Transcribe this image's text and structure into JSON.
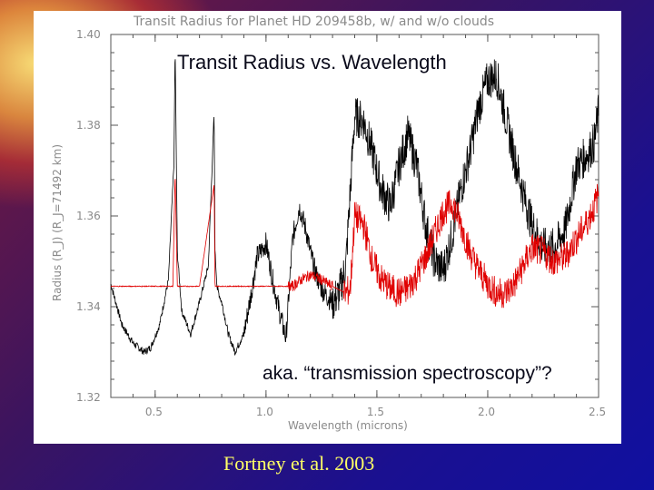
{
  "slide": {
    "overlay_title": "Transit Radius vs. Wavelength",
    "overlay_note": "aka. “transmission spectroscopy”?",
    "citation": "Fortney et al.  2003",
    "background_colors": [
      "#ffe680",
      "#d23c28",
      "#3a1460",
      "#1010a0"
    ]
  },
  "chart_data": {
    "type": "line",
    "title": "Transit Radius for Planet HD 209458b, w/ and w/o clouds",
    "xlabel": "Wavelength (microns)",
    "ylabel": "Radius (R_J) (R_J=71492 km)",
    "xlim": [
      0.3,
      2.5
    ],
    "ylim": [
      1.32,
      1.4
    ],
    "x_ticks": [
      0.5,
      1.0,
      1.5,
      2.0,
      2.5
    ],
    "x_tick_labels": [
      "0.5",
      "1.0",
      "1.5",
      "2.0",
      "2.5"
    ],
    "y_ticks": [
      1.32,
      1.34,
      1.36,
      1.38,
      1.4
    ],
    "y_tick_labels": [
      "1.32",
      "1.34",
      "1.36",
      "1.38",
      "1.40"
    ],
    "series": [
      {
        "name": "without clouds",
        "color": "#000000",
        "x": [
          0.3,
          0.35,
          0.4,
          0.45,
          0.48,
          0.52,
          0.56,
          0.585,
          0.59,
          0.6,
          0.62,
          0.66,
          0.7,
          0.74,
          0.766,
          0.77,
          0.78,
          0.8,
          0.83,
          0.86,
          0.9,
          0.93,
          0.96,
          1.0,
          1.03,
          1.06,
          1.09,
          1.12,
          1.15,
          1.18,
          1.2,
          1.22,
          1.25,
          1.28,
          1.3,
          1.33,
          1.36,
          1.4,
          1.44,
          1.48,
          1.52,
          1.56,
          1.6,
          1.64,
          1.68,
          1.72,
          1.76,
          1.8,
          1.84,
          1.88,
          1.92,
          1.96,
          2.0,
          2.04,
          2.08,
          2.12,
          2.16,
          2.2,
          2.25,
          2.3,
          2.35,
          2.4,
          2.44,
          2.48,
          2.5
        ],
        "values": [
          1.345,
          1.336,
          1.332,
          1.33,
          1.331,
          1.336,
          1.346,
          1.372,
          1.398,
          1.352,
          1.339,
          1.334,
          1.341,
          1.349,
          1.383,
          1.352,
          1.344,
          1.341,
          1.334,
          1.33,
          1.334,
          1.342,
          1.351,
          1.354,
          1.346,
          1.339,
          1.333,
          1.355,
          1.362,
          1.357,
          1.352,
          1.348,
          1.344,
          1.342,
          1.341,
          1.343,
          1.349,
          1.382,
          1.381,
          1.374,
          1.366,
          1.362,
          1.371,
          1.378,
          1.371,
          1.358,
          1.35,
          1.348,
          1.356,
          1.366,
          1.374,
          1.384,
          1.39,
          1.391,
          1.382,
          1.373,
          1.365,
          1.358,
          1.353,
          1.353,
          1.357,
          1.371,
          1.373,
          1.376,
          1.383
        ]
      },
      {
        "name": "with clouds",
        "color": "#e00000",
        "x": [
          0.3,
          0.4,
          0.5,
          0.58,
          0.59,
          0.6,
          0.7,
          0.766,
          0.77,
          0.8,
          0.9,
          0.96,
          1.0,
          1.03,
          1.06,
          1.09,
          1.12,
          1.16,
          1.2,
          1.25,
          1.28,
          1.32,
          1.36,
          1.38,
          1.4,
          1.44,
          1.48,
          1.52,
          1.56,
          1.6,
          1.64,
          1.68,
          1.72,
          1.76,
          1.8,
          1.84,
          1.88,
          1.92,
          1.96,
          2.0,
          2.04,
          2.08,
          2.12,
          2.16,
          2.2,
          2.25,
          2.3,
          2.35,
          2.4,
          2.44,
          2.48,
          2.5
        ],
        "values": [
          1.3445,
          1.3445,
          1.3445,
          1.3445,
          1.37,
          1.3445,
          1.3445,
          1.367,
          1.3445,
          1.3445,
          1.3445,
          1.3445,
          1.3445,
          1.3445,
          1.3445,
          1.3445,
          1.3445,
          1.346,
          1.347,
          1.346,
          1.345,
          1.344,
          1.343,
          1.344,
          1.36,
          1.358,
          1.35,
          1.346,
          1.344,
          1.343,
          1.344,
          1.347,
          1.351,
          1.356,
          1.361,
          1.363,
          1.358,
          1.352,
          1.348,
          1.345,
          1.343,
          1.343,
          1.345,
          1.349,
          1.353,
          1.352,
          1.35,
          1.351,
          1.355,
          1.358,
          1.362,
          1.365
        ]
      }
    ]
  }
}
